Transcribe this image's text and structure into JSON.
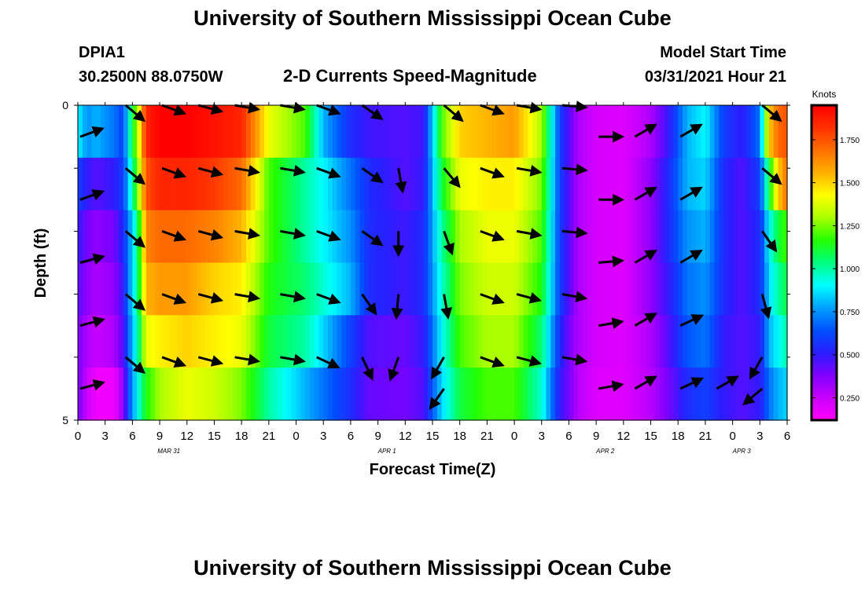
{
  "page": {
    "title_top": "University of Southern Mississippi Ocean Cube",
    "title_bottom": "University of Southern Mississippi Ocean Cube",
    "station": "DPIA1",
    "coords": "30.2500N  88.0750W",
    "subtitle": "2-D Currents Speed-Magnitude",
    "model_start_label": "Model Start Time",
    "model_start_value": "03/31/2021 Hour 21"
  },
  "colors": {
    "scale": [
      "#ff00ff",
      "#c800ff",
      "#8000ff",
      "#2a1eff",
      "#0050ff",
      "#00a0ff",
      "#00ffff",
      "#00ff80",
      "#22ff00",
      "#aaff00",
      "#ffff00",
      "#ffb000",
      "#ff7000",
      "#ff3000",
      "#ff0000"
    ],
    "arrow": "#000000"
  },
  "chart_data": {
    "type": "heatmap",
    "xlabel": "Forecast Time(Z)",
    "ylabel": "Depth (ft)",
    "x_tick_labels": [
      "0",
      "3",
      "6",
      "9",
      "12",
      "15",
      "18",
      "21",
      "0",
      "3",
      "6",
      "9",
      "12",
      "15",
      "18",
      "21",
      "0",
      "3",
      "6",
      "9",
      "12",
      "15",
      "18",
      "21",
      "0",
      "3",
      "6"
    ],
    "date_labels": [
      {
        "label": "MAR 31",
        "hour": 10
      },
      {
        "label": "APR 1",
        "hour": 34
      },
      {
        "label": "APR 2",
        "hour": 58
      },
      {
        "label": "APR 3",
        "hour": 73
      }
    ],
    "y_tick_labels": [
      "0",
      "5"
    ],
    "y_range": [
      0,
      5
    ],
    "x_range_hours": [
      0,
      78
    ],
    "colorbar": {
      "title": "Knots",
      "range": [
        0.12,
        1.95
      ],
      "ticks": [
        "0.250",
        "0.500",
        "0.750",
        "1.000",
        "1.250",
        "1.500",
        "1.750"
      ],
      "tick_values": [
        0.25,
        0.5,
        0.75,
        1.0,
        1.25,
        1.5,
        1.75
      ]
    },
    "speed_knots_profile_hours": [
      0,
      1,
      2,
      4,
      5,
      5.5,
      6.5,
      7.5,
      9,
      12,
      15,
      18,
      21,
      25,
      27,
      30,
      32,
      36,
      38,
      40,
      42,
      45,
      48,
      51,
      53,
      54,
      55,
      57,
      60,
      63,
      65,
      67,
      69,
      71,
      73,
      75,
      76,
      77,
      78
    ],
    "speed_knots_by_layer": [
      [
        0.9,
        0.75,
        0.8,
        0.7,
        0.6,
        0.9,
        1.3,
        1.85,
        1.95,
        1.95,
        1.9,
        1.85,
        1.4,
        1.2,
        0.8,
        0.55,
        0.48,
        0.45,
        0.48,
        1.2,
        1.5,
        1.55,
        1.6,
        1.3,
        0.6,
        0.45,
        0.3,
        0.22,
        0.2,
        0.3,
        0.5,
        0.8,
        0.9,
        0.6,
        0.5,
        0.7,
        1.5,
        1.7,
        1.75
      ],
      [
        0.6,
        0.5,
        0.45,
        0.5,
        0.6,
        0.8,
        1.2,
        1.75,
        1.85,
        1.85,
        1.8,
        1.7,
        1.2,
        1.0,
        0.9,
        0.7,
        0.55,
        0.45,
        0.5,
        1.1,
        1.4,
        1.45,
        1.45,
        1.25,
        0.6,
        0.45,
        0.3,
        0.22,
        0.2,
        0.35,
        0.55,
        0.8,
        0.85,
        0.55,
        0.45,
        0.6,
        1.1,
        1.5,
        1.7
      ],
      [
        0.5,
        0.4,
        0.35,
        0.4,
        0.55,
        0.7,
        1.0,
        1.65,
        1.7,
        1.7,
        1.65,
        1.55,
        1.2,
        1.0,
        0.9,
        0.75,
        0.55,
        0.48,
        0.55,
        1.0,
        1.3,
        1.4,
        1.4,
        1.2,
        0.6,
        0.45,
        0.3,
        0.22,
        0.2,
        0.35,
        0.55,
        0.75,
        0.8,
        0.55,
        0.45,
        0.55,
        0.9,
        1.1,
        1.2
      ],
      [
        0.45,
        0.35,
        0.3,
        0.35,
        0.5,
        0.7,
        1.0,
        1.55,
        1.6,
        1.6,
        1.5,
        1.45,
        1.15,
        1.05,
        0.95,
        0.8,
        0.55,
        0.48,
        0.55,
        0.95,
        1.25,
        1.35,
        1.35,
        1.15,
        0.6,
        0.45,
        0.3,
        0.22,
        0.2,
        0.35,
        0.5,
        0.7,
        0.75,
        0.55,
        0.45,
        0.55,
        0.85,
        1.0,
        1.1
      ],
      [
        0.4,
        0.3,
        0.25,
        0.3,
        0.45,
        0.65,
        0.95,
        1.4,
        1.45,
        1.5,
        1.45,
        1.4,
        1.1,
        1.0,
        0.85,
        0.6,
        0.45,
        0.42,
        0.5,
        0.9,
        1.2,
        1.3,
        1.3,
        1.05,
        0.55,
        0.4,
        0.3,
        0.22,
        0.2,
        0.3,
        0.45,
        0.65,
        0.7,
        0.5,
        0.45,
        0.5,
        0.8,
        0.9,
        1.0
      ],
      [
        0.4,
        0.25,
        0.15,
        0.15,
        0.35,
        0.6,
        0.9,
        1.15,
        1.3,
        1.4,
        1.35,
        1.25,
        1.0,
        0.8,
        0.7,
        0.55,
        0.42,
        0.4,
        0.45,
        0.85,
        1.1,
        1.2,
        1.2,
        0.95,
        0.5,
        0.4,
        0.28,
        0.2,
        0.2,
        0.28,
        0.4,
        0.55,
        0.6,
        0.5,
        0.45,
        0.5,
        0.7,
        0.8,
        0.85
      ]
    ],
    "arrow_hours": [
      0,
      5,
      9,
      13,
      17,
      22,
      26,
      31,
      35,
      40,
      44,
      48,
      53,
      57,
      61,
      66,
      70,
      75
    ],
    "arrow_rows": [
      {
        "depth": 0.0,
        "angles": [
          null,
          130,
          110,
          105,
          100,
          100,
          110,
          125,
          null,
          130,
          110,
          100,
          95,
          null,
          null,
          null,
          null,
          130
        ]
      },
      {
        "depth": 0.5,
        "angles": [
          70,
          null,
          null,
          null,
          null,
          null,
          null,
          null,
          null,
          null,
          null,
          null,
          null,
          90,
          60,
          60,
          null,
          null
        ]
      },
      {
        "depth": 1.0,
        "angles": [
          null,
          130,
          110,
          105,
          100,
          100,
          110,
          125,
          170,
          140,
          110,
          100,
          95,
          null,
          null,
          null,
          null,
          130
        ]
      },
      {
        "depth": 1.5,
        "angles": [
          70,
          null,
          null,
          null,
          null,
          null,
          null,
          null,
          null,
          null,
          null,
          null,
          null,
          90,
          60,
          60,
          null,
          null
        ]
      },
      {
        "depth": 2.0,
        "angles": [
          null,
          130,
          110,
          105,
          100,
          100,
          110,
          125,
          180,
          160,
          110,
          100,
          95,
          null,
          null,
          null,
          null,
          145
        ]
      },
      {
        "depth": 2.5,
        "angles": [
          75,
          null,
          null,
          null,
          null,
          null,
          null,
          null,
          null,
          null,
          null,
          null,
          null,
          85,
          60,
          60,
          null,
          null
        ]
      },
      {
        "depth": 3.0,
        "angles": [
          null,
          130,
          110,
          105,
          100,
          100,
          110,
          145,
          185,
          170,
          110,
          105,
          100,
          null,
          null,
          null,
          null,
          165
        ]
      },
      {
        "depth": 3.5,
        "angles": [
          75,
          null,
          null,
          null,
          null,
          null,
          null,
          null,
          null,
          null,
          null,
          null,
          null,
          80,
          60,
          65,
          null,
          null
        ]
      },
      {
        "depth": 4.0,
        "angles": [
          null,
          130,
          110,
          105,
          100,
          100,
          115,
          155,
          200,
          210,
          110,
          105,
          100,
          null,
          null,
          null,
          null,
          210
        ]
      },
      {
        "depth": 4.5,
        "angles": [
          75,
          null,
          null,
          null,
          null,
          null,
          null,
          null,
          null,
          215,
          null,
          null,
          null,
          80,
          60,
          65,
          60,
          230
        ]
      }
    ]
  }
}
